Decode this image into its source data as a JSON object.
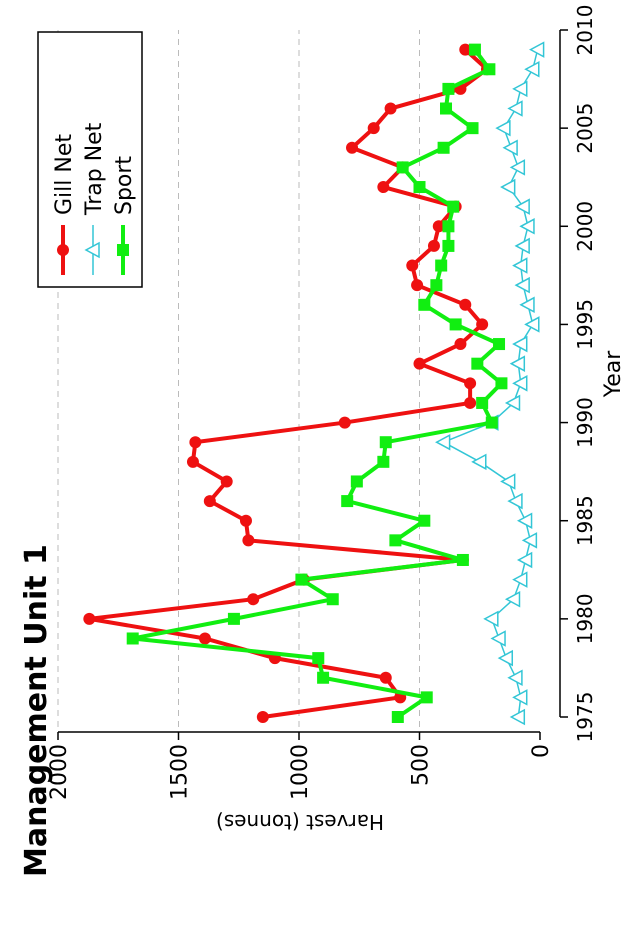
{
  "chart_data": {
    "type": "line",
    "title": "Management Unit 1",
    "x_label": "Year",
    "y_label": "Harvest (tonnes)",
    "x": [
      1975,
      1976,
      1977,
      1978,
      1979,
      1980,
      1981,
      1982,
      1983,
      1984,
      1985,
      1986,
      1987,
      1988,
      1989,
      1990,
      1991,
      1992,
      1993,
      1994,
      1995,
      1996,
      1997,
      1998,
      1999,
      2000,
      2001,
      2002,
      2003,
      2004,
      2005,
      2006,
      2007,
      2008,
      2009
    ],
    "series": [
      {
        "name": "Gill Net",
        "color": "#ee1111",
        "marker": "circle",
        "values": [
          1150,
          580,
          640,
          1100,
          1390,
          1870,
          1190,
          980,
          320,
          1210,
          1220,
          1370,
          1300,
          1440,
          1430,
          810,
          290,
          290,
          500,
          330,
          240,
          310,
          510,
          530,
          440,
          420,
          350,
          650,
          570,
          780,
          690,
          620,
          330,
          220,
          310
        ]
      },
      {
        "name": "Trap Net",
        "color": "#33c6d6",
        "marker": "triangle",
        "values": [
          90,
          80,
          100,
          140,
          170,
          200,
          110,
          80,
          60,
          40,
          60,
          100,
          130,
          250,
          400,
          200,
          110,
          80,
          90,
          80,
          30,
          50,
          70,
          80,
          70,
          50,
          70,
          130,
          90,
          120,
          150,
          100,
          80,
          30,
          10
        ]
      },
      {
        "name": "Sport",
        "color": "#11ee11",
        "marker": "square",
        "values": [
          590,
          470,
          900,
          920,
          1690,
          1270,
          860,
          990,
          320,
          600,
          480,
          800,
          760,
          650,
          640,
          200,
          240,
          160,
          260,
          170,
          350,
          480,
          430,
          410,
          380,
          380,
          360,
          500,
          570,
          400,
          280,
          390,
          380,
          210,
          270
        ]
      }
    ],
    "xlim": [
      1975,
      2010
    ],
    "xticks": [
      1975,
      1980,
      1985,
      1990,
      1995,
      2000,
      2005,
      2010
    ],
    "ylim": [
      0,
      2000
    ],
    "yticks": [
      0,
      500,
      1000,
      1500,
      2000
    ],
    "grid": true,
    "legend": "top-right",
    "rotation": -90
  }
}
